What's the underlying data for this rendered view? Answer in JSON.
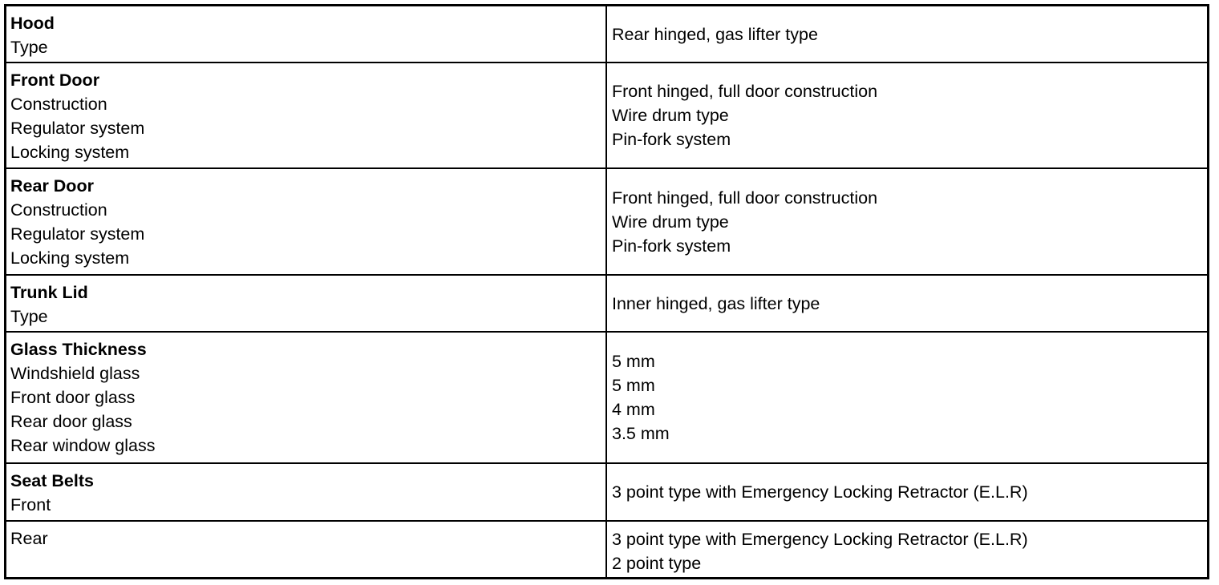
{
  "rows": [
    {
      "heading": "Hood",
      "labels": [
        "Type"
      ],
      "values": [
        "Rear hinged, gas lifter type"
      ]
    },
    {
      "heading": "Front Door",
      "labels": [
        "Construction",
        "Regulator system",
        "Locking system"
      ],
      "values": [
        "Front hinged, full door construction",
        "Wire drum type",
        "Pin-fork system"
      ]
    },
    {
      "heading": "Rear Door",
      "labels": [
        "Construction",
        "Regulator system",
        "Locking system"
      ],
      "values": [
        "Front hinged, full door construction",
        "Wire drum type",
        "Pin-fork system"
      ]
    },
    {
      "heading": "Trunk Lid",
      "labels": [
        "Type"
      ],
      "values": [
        "Inner hinged, gas lifter type"
      ]
    },
    {
      "heading": "Glass Thickness",
      "labels": [
        "Windshield glass",
        "Front door glass",
        "Rear door glass",
        "Rear window glass"
      ],
      "values": [
        "5 mm",
        "5 mm",
        "4 mm",
        "3.5 mm"
      ]
    },
    {
      "heading": "Seat Belts",
      "labels": [
        "Front"
      ],
      "values": [
        "3 point type with Emergency Locking Retractor (E.L.R)"
      ]
    },
    {
      "heading": "",
      "labels": [
        "Rear"
      ],
      "values": [
        "3 point type with Emergency Locking Retractor (E.L.R)",
        "2 point type"
      ]
    }
  ]
}
